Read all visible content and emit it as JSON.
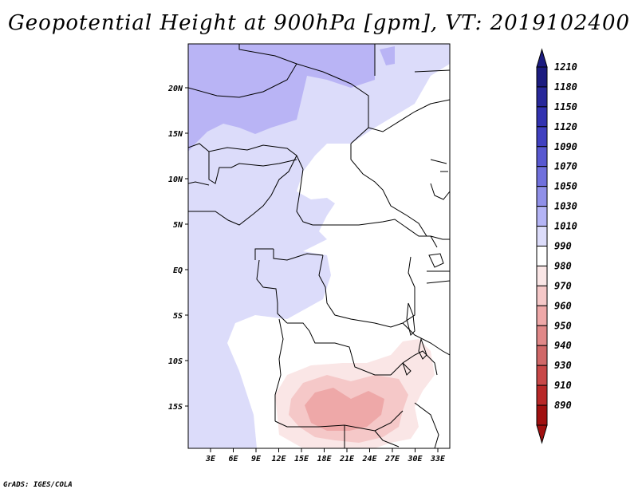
{
  "title": "Geopotential Height at 900hPa [gpm], VT: 2019102400",
  "credit": "GrADS: IGES/COLA",
  "map": {
    "lon_labels": [
      "3E",
      "6E",
      "9E",
      "12E",
      "15E",
      "18E",
      "21E",
      "24E",
      "27E",
      "30E",
      "33E"
    ],
    "lat_labels": [
      "20N",
      "15N",
      "10N",
      "5N",
      "EQ",
      "5S",
      "10S",
      "15S"
    ]
  },
  "colorbar": {
    "levels": [
      "1210",
      "1180",
      "1150",
      "1120",
      "1090",
      "1070",
      "1050",
      "1030",
      "1010",
      "990",
      "980",
      "970",
      "960",
      "950",
      "940",
      "930",
      "910",
      "890"
    ],
    "colors": [
      "#1c1c80",
      "#28289a",
      "#3232b0",
      "#4040c0",
      "#5858d0",
      "#7070dc",
      "#9090e8",
      "#b4b4f5",
      "#dcdcfa",
      "#ffffff",
      "#fae6e6",
      "#f5c8c8",
      "#eea8a8",
      "#e08888",
      "#d06868",
      "#c84848",
      "#b82828",
      "#a01010"
    ]
  },
  "fields": {
    "colors": {
      "ocean": "#dcdcfa",
      "north_high": "#b9b4f5",
      "land": "#ffffff",
      "pink_light": "#fae6e6",
      "pink_mid": "#f5c8c8",
      "pink_dark": "#eea8a8"
    }
  }
}
